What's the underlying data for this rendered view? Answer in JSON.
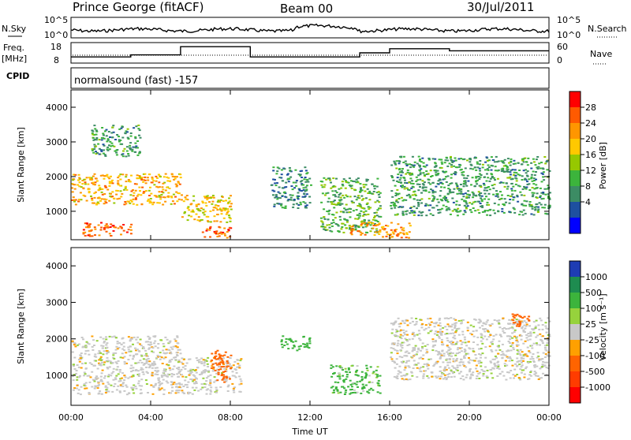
{
  "header": {
    "station": "Prince George (fitACF)",
    "beam": "Beam 00",
    "date": "30/Jul/2011"
  },
  "noise_panel": {
    "left_label": "N.Sky",
    "right_label": "N.Search",
    "left_ticks": [
      "10^5",
      "10^0"
    ],
    "right_ticks": [
      "10^5",
      "10^0"
    ]
  },
  "freq_panel": {
    "left_label_1": "Freq.",
    "left_label_2": "[MHz]",
    "left_ticks": [
      "18",
      "8"
    ],
    "right_ticks": [
      "60",
      "0"
    ],
    "right_label": "Nave"
  },
  "cpid": {
    "label": "CPID",
    "value": "normalsound (fast) -157"
  },
  "power_panel": {
    "ylabel": "Slant Range [km]",
    "cbar_label": "Power [dB]",
    "cbar_ticks": [
      "28",
      "24",
      "20",
      "16",
      "12",
      "8",
      "4"
    ],
    "cbar_colors": [
      "#ff0000",
      "#ff5a00",
      "#ff9600",
      "#ffc800",
      "#96c800",
      "#3cb43c",
      "#3c8c64",
      "#1e50a0",
      "#0000ff"
    ]
  },
  "velocity_panel": {
    "ylabel": "Slant Range [km]",
    "cbar_label": "Velocity [m s⁻¹]",
    "cbar_ticks": [
      "1000",
      "500",
      "100",
      "25",
      "-25",
      "-100",
      "-500",
      "-1000"
    ],
    "cbar_colors": [
      "#1e3cb4",
      "#1e8c50",
      "#3cb43c",
      "#96d23c",
      "#c8c8c8",
      "#ffa000",
      "#ff6400",
      "#ff3c00",
      "#ff0000"
    ]
  },
  "xaxis": {
    "label": "Time UT",
    "ticks": [
      "00:00",
      "04:00",
      "08:00",
      "12:00",
      "16:00",
      "20:00",
      "00:00"
    ]
  },
  "chart_data": {
    "type": "heatmap",
    "title": "Prince George (fitACF) Beam 00 30/Jul/2011",
    "x_range": [
      "00:00",
      "24:00"
    ],
    "y_range_km": [
      180,
      4500
    ],
    "y_ticks_km": [
      1000,
      2000,
      3000,
      4000
    ],
    "xlabel": "Time UT",
    "ylabel": "Slant Range [km]",
    "freq_mhz_segments": [
      {
        "start_h": 0.0,
        "end_h": 3.0,
        "freq": 11
      },
      {
        "start_h": 3.0,
        "end_h": 5.5,
        "freq": 12
      },
      {
        "start_h": 5.5,
        "end_h": 9.0,
        "freq": 16
      },
      {
        "start_h": 9.0,
        "end_h": 14.5,
        "freq": 11
      },
      {
        "start_h": 14.5,
        "end_h": 16.0,
        "freq": 13
      },
      {
        "start_h": 16.0,
        "end_h": 19.0,
        "freq": 15
      },
      {
        "start_h": 19.0,
        "end_h": 24.0,
        "freq": 14
      }
    ],
    "power_blobs": [
      {
        "t0": 0.0,
        "t1": 5.5,
        "r0": 1200,
        "r1": 2100,
        "level": 22
      },
      {
        "t0": 0.5,
        "t1": 3.0,
        "r0": 300,
        "r1": 700,
        "level": 28
      },
      {
        "t0": 1.0,
        "t1": 3.5,
        "r0": 2600,
        "r1": 3500,
        "level": 10
      },
      {
        "t0": 5.5,
        "t1": 8.0,
        "r0": 700,
        "r1": 1500,
        "level": 20
      },
      {
        "t0": 6.5,
        "t1": 8.0,
        "r0": 250,
        "r1": 600,
        "level": 28
      },
      {
        "t0": 10.0,
        "t1": 12.0,
        "r0": 1100,
        "r1": 2300,
        "level": 8
      },
      {
        "t0": 12.5,
        "t1": 15.5,
        "r0": 400,
        "r1": 2000,
        "level": 12
      },
      {
        "t0": 16.0,
        "t1": 24.0,
        "r0": 900,
        "r1": 2600,
        "level": 10
      },
      {
        "t0": 14.0,
        "t1": 17.0,
        "r0": 250,
        "r1": 700,
        "level": 24
      }
    ],
    "velocity_blobs": [
      {
        "t0": 0.0,
        "t1": 5.5,
        "r0": 500,
        "r1": 2100,
        "vel": 0
      },
      {
        "t0": 5.5,
        "t1": 8.5,
        "r0": 500,
        "r1": 1500,
        "vel": 0
      },
      {
        "t0": 7.0,
        "t1": 8.0,
        "r0": 800,
        "r1": 1700,
        "vel": -300
      },
      {
        "t0": 10.5,
        "t1": 12.0,
        "r0": 1700,
        "r1": 2100,
        "vel": 300
      },
      {
        "t0": 13.0,
        "t1": 15.5,
        "r0": 500,
        "r1": 1300,
        "vel": 100
      },
      {
        "t0": 16.0,
        "t1": 24.0,
        "r0": 900,
        "r1": 2600,
        "vel": 0
      },
      {
        "t0": 22.0,
        "t1": 23.0,
        "r0": 2300,
        "r1": 2700,
        "vel": -300
      }
    ]
  }
}
